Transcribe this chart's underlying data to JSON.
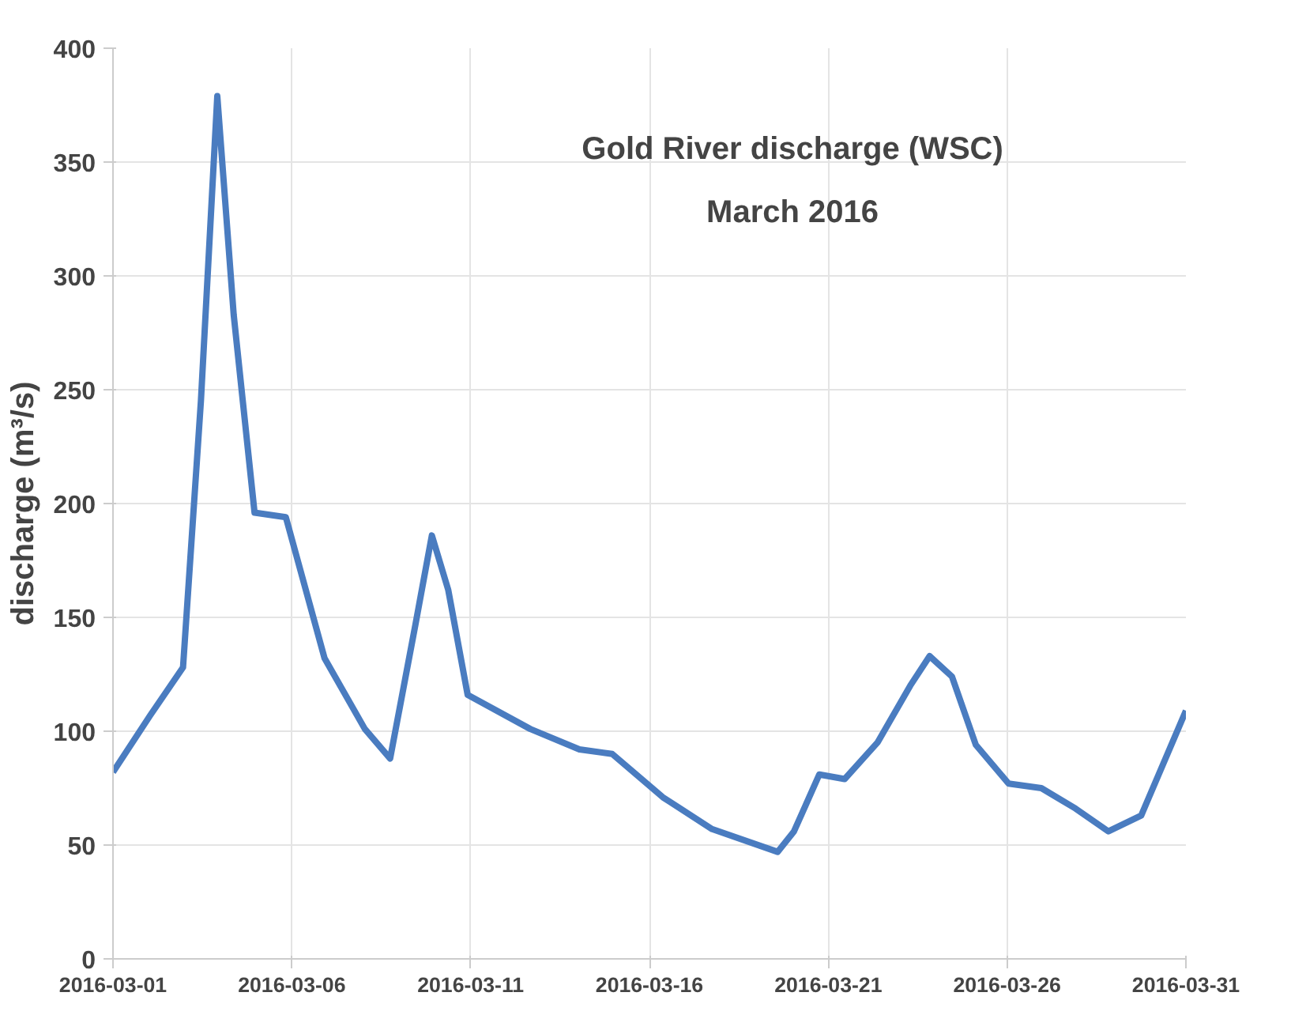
{
  "chart_data": {
    "type": "line",
    "title": "Gold River discharge (WSC)",
    "subtitle": "March 2016",
    "ylabel": "discharge (m³/s)",
    "x": [
      "2016-03-01T00:00",
      "2016-03-02T01:00",
      "2016-03-02T23:00",
      "2016-03-03T11:00",
      "2016-03-03T22:00",
      "2016-03-04T09:00",
      "2016-03-04T23:00",
      "2016-03-05T20:00",
      "2016-03-06T22:00",
      "2016-03-08T01:00",
      "2016-03-08T18:00",
      "2016-03-09T11:00",
      "2016-03-09T22:00",
      "2016-03-10T09:00",
      "2016-03-10T22:00",
      "2016-03-12T16:00",
      "2016-03-14T01:00",
      "2016-03-14T23:00",
      "2016-03-16T09:00",
      "2016-03-17T18:00",
      "2016-03-19T14:00",
      "2016-03-20T01:00",
      "2016-03-20T18:00",
      "2016-03-21T11:00",
      "2016-03-22T09:00",
      "2016-03-23T07:00",
      "2016-03-23T20:00",
      "2016-03-24T11:00",
      "2016-03-25T03:00",
      "2016-03-26T01:00",
      "2016-03-26T23:00",
      "2016-03-27T22:00",
      "2016-03-28T20:00",
      "2016-03-29T18:00",
      "2016-03-31T00:00"
    ],
    "series": [
      {
        "color": "#4a7cc0",
        "values": [
          82,
          107,
          128,
          245,
          379,
          283,
          196,
          194,
          132,
          101,
          88,
          147,
          186,
          162,
          116,
          101,
          92,
          90,
          71,
          57,
          47,
          56,
          81,
          79,
          95,
          120,
          133,
          124,
          94,
          77,
          75,
          66,
          56,
          63,
          109
        ]
      }
    ],
    "xlim": [
      "2016-03-01",
      "2016-03-31"
    ],
    "xticks": [
      "2016-03-01",
      "2016-03-06",
      "2016-03-11",
      "2016-03-16",
      "2016-03-21",
      "2016-03-26",
      "2016-03-31"
    ],
    "ylim": [
      0,
      400
    ],
    "yticks": [
      0,
      50,
      100,
      150,
      200,
      250,
      300,
      350,
      400
    ],
    "grid": true,
    "marker": "none",
    "line_style": "solid"
  }
}
